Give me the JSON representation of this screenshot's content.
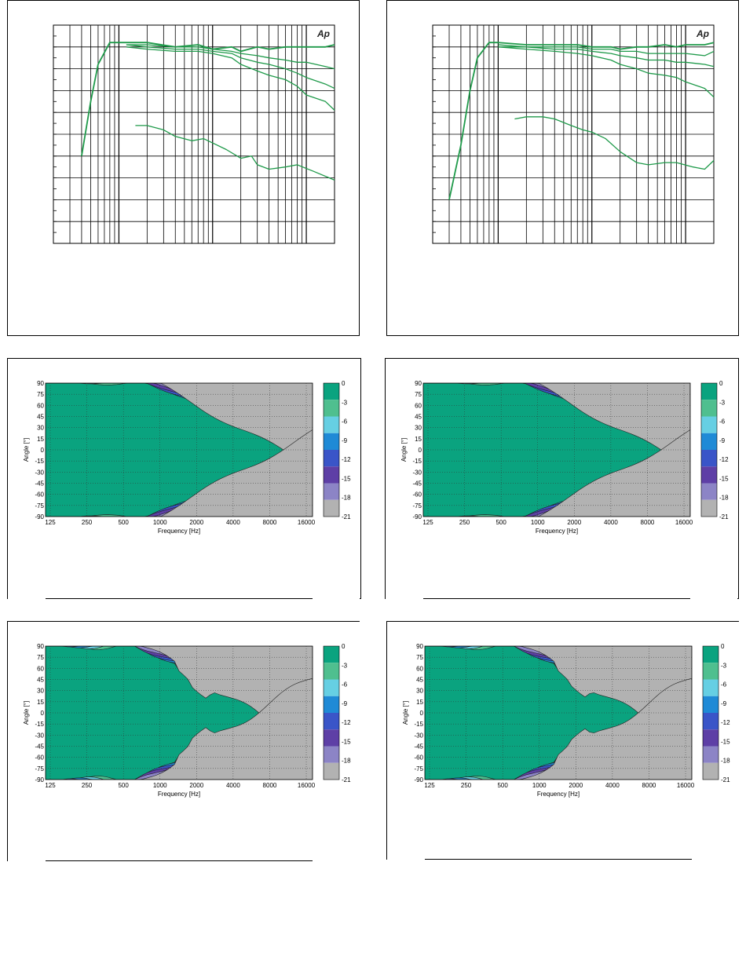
{
  "logo_text": "Ap",
  "colors": {
    "curve": "#1f9a4a",
    "contour_levels": [
      "#0aa37f",
      "#4fbf8f",
      "#66cfe3",
      "#1f8ad6",
      "#3a55c8",
      "#5e3fa6",
      "#8c84c6",
      "#b2b2b2"
    ]
  },
  "chart_data": [
    {
      "id": "freq-left",
      "type": "line",
      "xscale": "log",
      "xlim": [
        20,
        20000
      ],
      "grid": true,
      "series": [
        {
          "x": [
            40,
            50,
            60,
            80,
            120,
            200,
            400,
            700,
            1000,
            1600,
            2000,
            3000,
            4000,
            6000,
            8000,
            10000,
            16000,
            20000
          ],
          "y": [
            -50,
            -25,
            -8,
            2,
            2,
            2,
            0,
            1,
            -1,
            0,
            -2,
            0,
            -1,
            0,
            0,
            0,
            0,
            1
          ]
        },
        {
          "x": [
            120,
            200,
            400,
            700,
            1000,
            1600,
            2000,
            3000,
            4000,
            6000,
            8000,
            10000,
            16000,
            20000
          ],
          "y": [
            1,
            1,
            0,
            0,
            -1,
            -2,
            -3,
            -4,
            -5,
            -6,
            -7,
            -7,
            -9,
            -10
          ]
        },
        {
          "x": [
            120,
            200,
            400,
            700,
            1000,
            1600,
            2000,
            3000,
            4000,
            6000,
            8000,
            10000,
            16000,
            20000
          ],
          "y": [
            1,
            0,
            -1,
            -1,
            -2,
            -3,
            -5,
            -7,
            -8,
            -10,
            -12,
            -14,
            -17,
            -19
          ]
        },
        {
          "x": [
            120,
            200,
            400,
            700,
            1000,
            1600,
            2000,
            3000,
            4000,
            6000,
            8000,
            10000,
            16000,
            20000
          ],
          "y": [
            0,
            -1,
            -2,
            -2,
            -3,
            -5,
            -8,
            -11,
            -13,
            -15,
            -18,
            -22,
            -25,
            -29
          ]
        },
        {
          "x": [
            150,
            200,
            300,
            400,
            600,
            800,
            1000,
            1400,
            2000,
            2600,
            3000,
            4000,
            6000,
            8000,
            12000,
            20000
          ],
          "y": [
            -36,
            -36,
            -38,
            -41,
            -43,
            -42,
            -44,
            -47,
            -51,
            -50,
            -54,
            -56,
            -55,
            -54,
            -57,
            -61
          ]
        }
      ]
    },
    {
      "id": "freq-right",
      "type": "line",
      "xscale": "log",
      "xlim": [
        20,
        20000
      ],
      "grid": true,
      "series": [
        {
          "x": [
            30,
            40,
            50,
            60,
            80,
            100,
            200,
            400,
            700,
            1000,
            1600,
            2000,
            3000,
            4000,
            6000,
            8000,
            10000,
            16000,
            20000
          ],
          "y": [
            -70,
            -45,
            -20,
            -5,
            2,
            2,
            1,
            1,
            1,
            0,
            0,
            -1,
            0,
            0,
            1,
            0,
            1,
            1,
            2
          ]
        },
        {
          "x": [
            100,
            200,
            400,
            700,
            1000,
            1600,
            2000,
            3000,
            4000,
            6000,
            8000,
            10000,
            16000,
            20000
          ],
          "y": [
            1,
            0,
            0,
            0,
            -1,
            -1,
            -2,
            -2,
            -3,
            -3,
            -3,
            -3,
            -4,
            -2
          ]
        },
        {
          "x": [
            100,
            200,
            400,
            700,
            1000,
            1600,
            2000,
            3000,
            4000,
            6000,
            8000,
            10000,
            16000,
            20000
          ],
          "y": [
            0,
            0,
            -1,
            -1,
            -2,
            -3,
            -4,
            -5,
            -6,
            -6,
            -7,
            -7,
            -8,
            -9
          ]
        },
        {
          "x": [
            100,
            200,
            400,
            700,
            1000,
            1600,
            2000,
            3000,
            4000,
            6000,
            8000,
            10000,
            16000,
            20000
          ],
          "y": [
            0,
            -1,
            -2,
            -3,
            -4,
            -6,
            -8,
            -10,
            -12,
            -13,
            -14,
            -16,
            -19,
            -23
          ]
        },
        {
          "x": [
            150,
            200,
            300,
            400,
            600,
            800,
            1000,
            1400,
            2000,
            3000,
            4000,
            6000,
            8000,
            12000,
            16000,
            20000
          ],
          "y": [
            -33,
            -32,
            -32,
            -33,
            -36,
            -38,
            -39,
            -42,
            -48,
            -53,
            -54,
            -53,
            -53,
            -55,
            -56,
            -52
          ]
        }
      ]
    },
    {
      "id": "polar-1",
      "type": "heatmap",
      "xlabel": "Frequency [Hz]",
      "ylabel": "Angle [°]",
      "x_ticks": [
        "125",
        "250",
        "500",
        "1000",
        "2000",
        "4000",
        "8000",
        "16000"
      ],
      "y_ticks": [
        "90",
        "75",
        "60",
        "45",
        "30",
        "15",
        "0",
        "-15",
        "-30",
        "-45",
        "-60",
        "-75",
        "-90"
      ],
      "colorbar_ticks": [
        "0",
        "-3",
        "-6",
        "-9",
        "-12",
        "-15",
        "-18",
        "-21"
      ]
    },
    {
      "id": "polar-2",
      "type": "heatmap",
      "xlabel": "Frequency [Hz]",
      "ylabel": "Angle [°]",
      "x_ticks": [
        "125",
        "250",
        "500",
        "1000",
        "2000",
        "4000",
        "8000",
        "16000"
      ],
      "y_ticks": [
        "90",
        "75",
        "60",
        "45",
        "30",
        "15",
        "0",
        "-15",
        "-30",
        "-45",
        "-60",
        "-75",
        "-90"
      ],
      "colorbar_ticks": [
        "0",
        "-3",
        "-6",
        "-9",
        "-12",
        "-15",
        "-18",
        "-21"
      ]
    },
    {
      "id": "polar-3",
      "type": "heatmap",
      "xlabel": "Frequency [Hz]",
      "ylabel": "Angle [°]",
      "x_ticks": [
        "125",
        "250",
        "500",
        "1000",
        "2000",
        "4000",
        "8000",
        "16000"
      ],
      "y_ticks": [
        "90",
        "75",
        "60",
        "45",
        "30",
        "15",
        "0",
        "-15",
        "-30",
        "-45",
        "-60",
        "-75",
        "-90"
      ],
      "colorbar_ticks": [
        "0",
        "-3",
        "-6",
        "-9",
        "-12",
        "-15",
        "-18",
        "-21"
      ]
    },
    {
      "id": "polar-4",
      "type": "heatmap",
      "xlabel": "Frequency [Hz]",
      "ylabel": "Angle [°]",
      "x_ticks": [
        "125",
        "250",
        "500",
        "1000",
        "2000",
        "4000",
        "8000",
        "16000"
      ],
      "y_ticks": [
        "90",
        "75",
        "60",
        "45",
        "30",
        "15",
        "0",
        "-15",
        "-30",
        "-45",
        "-60",
        "-75",
        "-90"
      ],
      "colorbar_ticks": [
        "0",
        "-3",
        "-6",
        "-9",
        "-12",
        "-15",
        "-18",
        "-21"
      ]
    }
  ]
}
